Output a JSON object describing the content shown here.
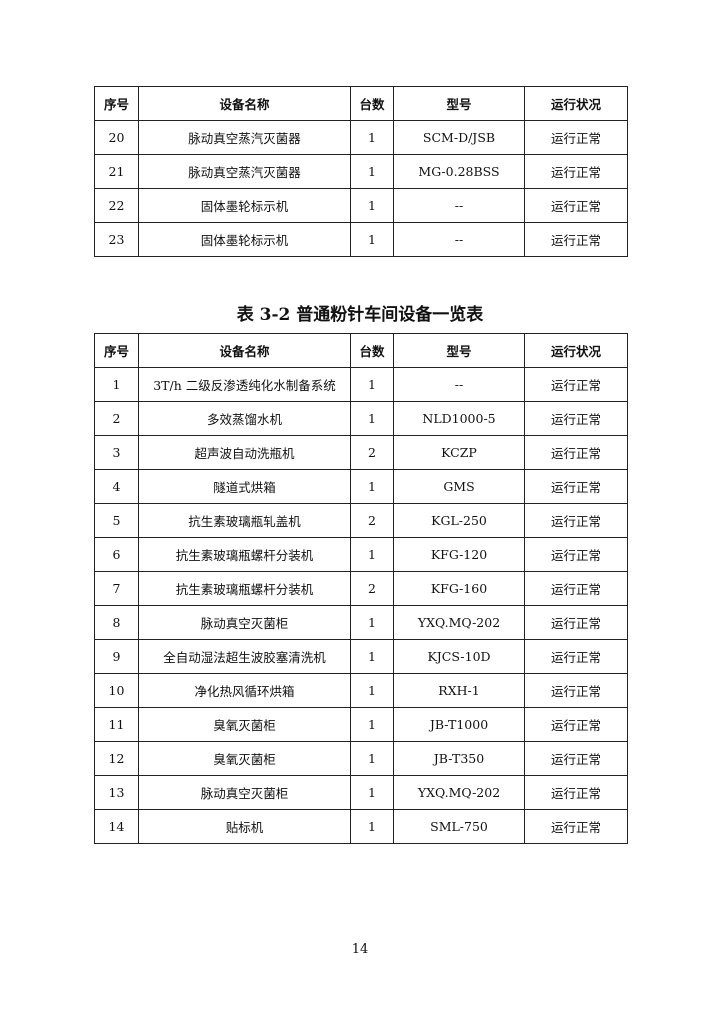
{
  "tables": [
    {
      "header": [
        "序号",
        "设备名称",
        "台数",
        "型号",
        "运行状况"
      ],
      "rows": [
        [
          "20",
          "脉动真空蒸汽灭菌器",
          "1",
          "SCM-D/JSB",
          "运行正常"
        ],
        [
          "21",
          "脉动真空蒸汽灭菌器",
          "1",
          "MG-0.28BSS",
          "运行正常"
        ],
        [
          "22",
          "固体墨轮标示机",
          "1",
          "--",
          "运行正常"
        ],
        [
          "23",
          "固体墨轮标示机",
          "1",
          "--",
          "运行正常"
        ]
      ]
    },
    {
      "title": "表 3-2  普通粉针车间设备一览表",
      "header": [
        "序号",
        "设备名称",
        "台数",
        "型号",
        "运行状况"
      ],
      "rows": [
        [
          "1",
          "3T/h  二级反渗透纯化水制备系统",
          "1",
          "--",
          "运行正常"
        ],
        [
          "2",
          "多效蒸馏水机",
          "1",
          "NLD1000-5",
          "运行正常"
        ],
        [
          "3",
          "超声波自动洗瓶机",
          "2",
          "KCZP",
          "运行正常"
        ],
        [
          "4",
          "隧道式烘箱",
          "1",
          "GMS",
          "运行正常"
        ],
        [
          "5",
          "抗生素玻璃瓶轧盖机",
          "2",
          "KGL-250",
          "运行正常"
        ],
        [
          "6",
          "抗生素玻璃瓶螺杆分装机",
          "1",
          "KFG-120",
          "运行正常"
        ],
        [
          "7",
          "抗生素玻璃瓶螺杆分装机",
          "2",
          "KFG-160",
          "运行正常"
        ],
        [
          "8",
          "脉动真空灭菌柜",
          "1",
          "YXQ.MQ-202",
          "运行正常"
        ],
        [
          "9",
          "全自动湿法超生波胶塞清洗机",
          "1",
          "KJCS-10D",
          "运行正常"
        ],
        [
          "10",
          "净化热风循环烘箱",
          "1",
          "RXH-1",
          "运行正常"
        ],
        [
          "11",
          "臭氧灭菌柜",
          "1",
          "JB-T1000",
          "运行正常"
        ],
        [
          "12",
          "臭氧灭菌柜",
          "1",
          "JB-T350",
          "运行正常"
        ],
        [
          "13",
          "脉动真空灭菌柜",
          "1",
          "YXQ.MQ-202",
          "运行正常"
        ],
        [
          "14",
          "贴标机",
          "1",
          "SML-750",
          "运行正常"
        ]
      ]
    }
  ],
  "page_number": "14"
}
